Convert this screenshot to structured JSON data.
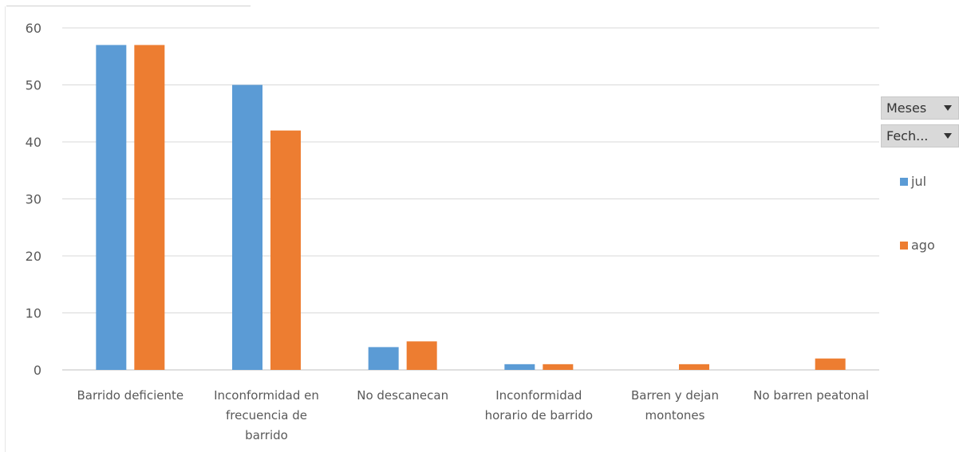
{
  "chart_data": {
    "type": "bar",
    "categories": [
      [
        "Barrido deficiente"
      ],
      [
        "Inconformidad en",
        "frecuencia de",
        "barrido"
      ],
      [
        "No descanecan"
      ],
      [
        "Inconformidad",
        "horario de barrido"
      ],
      [
        "Barren y dejan",
        "montones"
      ],
      [
        "No barren peatonal"
      ]
    ],
    "series": [
      {
        "name": "jul",
        "color": "#5b9bd5",
        "values": [
          57,
          50,
          4,
          1,
          0,
          0
        ]
      },
      {
        "name": "ago",
        "color": "#ed7d31",
        "values": [
          57,
          42,
          5,
          1,
          1,
          2
        ]
      }
    ],
    "yticks": [
      "0",
      "10",
      "20",
      "30",
      "40",
      "50",
      "60"
    ],
    "ylim": [
      0,
      60
    ],
    "grid": true,
    "legend_position": "right"
  },
  "filters": {
    "meses_label": "Meses",
    "fecha_label": "Fech..."
  }
}
